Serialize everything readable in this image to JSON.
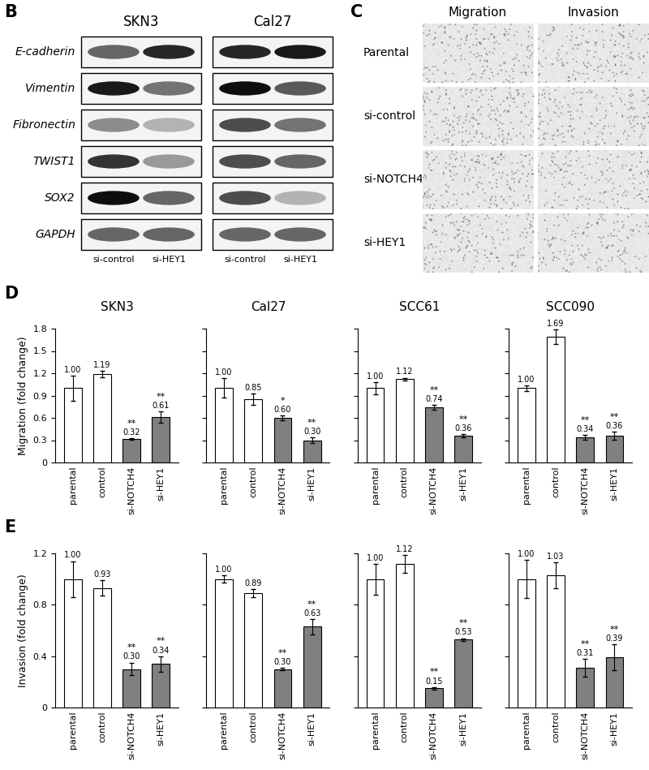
{
  "blots": {
    "label": "B",
    "proteins": [
      "E-cadherin",
      "Vimentin",
      "Fibronectin",
      "TWIST1",
      "SOX2",
      "GAPDH"
    ],
    "conditions": [
      "si-control",
      "si-HEY1"
    ],
    "cell_lines": [
      {
        "name": "SKN3",
        "band_intensity": [
          [
            0.6,
            0.85
          ],
          [
            0.9,
            0.55
          ],
          [
            0.45,
            0.3
          ],
          [
            0.8,
            0.4
          ],
          [
            0.95,
            0.6
          ],
          [
            0.6,
            0.6
          ]
        ]
      },
      {
        "name": "Cal27",
        "band_intensity": [
          [
            0.85,
            0.9
          ],
          [
            0.95,
            0.65
          ],
          [
            0.7,
            0.55
          ],
          [
            0.7,
            0.6
          ],
          [
            0.7,
            0.3
          ],
          [
            0.6,
            0.6
          ]
        ]
      }
    ]
  },
  "images": {
    "label": "C",
    "columns": [
      "Migration",
      "Invasion"
    ],
    "rows": [
      "Parental",
      "si-control",
      "si-NOTCH4",
      "si-HEY1"
    ]
  },
  "chart_data": [
    {
      "type": "bar",
      "panel": "D",
      "title": "SKN3",
      "y_label": "Migration (fold change)",
      "categories": [
        "parental",
        "control",
        "si-NOTCH4",
        "si-HEY1"
      ],
      "values": [
        1.0,
        1.19,
        0.32,
        0.61
      ],
      "value_labels": [
        "1.00",
        "1.19",
        "0.32",
        "0.61"
      ],
      "errors": [
        0.17,
        0.04,
        0.01,
        0.08
      ],
      "significance": [
        null,
        null,
        "**",
        "**"
      ],
      "colors": [
        "#ffffff",
        "#ffffff",
        "#808080",
        "#808080"
      ],
      "ylim": [
        0,
        1.8
      ],
      "yticks": [
        0,
        0.3,
        0.6,
        0.9,
        1.2,
        1.5,
        1.8
      ],
      "data_labels": true
    },
    {
      "type": "bar",
      "title": "Cal27",
      "categories": [
        "parental",
        "control",
        "si-NOTCH4",
        "si-HEY1"
      ],
      "values": [
        1.0,
        0.85,
        0.6,
        0.3
      ],
      "value_labels": [
        "1.00",
        "0.85",
        "0.60",
        "0.30"
      ],
      "errors": [
        0.13,
        0.08,
        0.03,
        0.04
      ],
      "significance": [
        null,
        null,
        "*",
        "**"
      ],
      "colors": [
        "#ffffff",
        "#ffffff",
        "#808080",
        "#808080"
      ],
      "ylim": [
        0,
        1.8
      ],
      "yticks": [
        0,
        0.3,
        0.6,
        0.9,
        1.2,
        1.5,
        1.8
      ],
      "data_labels": true,
      "tick_labels": "x"
    },
    {
      "type": "bar",
      "title": "SCC61",
      "categories": [
        "parental",
        "control",
        "si-NOTCH4",
        "si-HEY1"
      ],
      "values": [
        1.0,
        1.12,
        0.74,
        0.36
      ],
      "value_labels": [
        "1.00",
        "1.12",
        "0.74",
        "0.36"
      ],
      "errors": [
        0.08,
        0.02,
        0.03,
        0.02
      ],
      "significance": [
        null,
        null,
        "**",
        "**"
      ],
      "colors": [
        "#ffffff",
        "#ffffff",
        "#808080",
        "#808080"
      ],
      "ylim": [
        0,
        1.8
      ],
      "yticks": [
        0,
        0.3,
        0.6,
        0.9,
        1.2,
        1.5,
        1.8
      ],
      "data_labels": true,
      "tick_labels": "x"
    },
    {
      "type": "bar",
      "title": "SCC090",
      "categories": [
        "parental",
        "control",
        "si-NOTCH4",
        "si-HEY1"
      ],
      "values": [
        1.0,
        1.69,
        0.34,
        0.36
      ],
      "value_labels": [
        "1.00",
        "1.69",
        "0.34",
        "0.36"
      ],
      "errors": [
        0.04,
        0.1,
        0.03,
        0.05
      ],
      "significance": [
        null,
        null,
        "**",
        "**"
      ],
      "colors": [
        "#ffffff",
        "#ffffff",
        "#808080",
        "#808080"
      ],
      "ylim": [
        0,
        1.8
      ],
      "yticks": [
        0,
        0.3,
        0.6,
        0.9,
        1.2,
        1.5,
        1.8
      ],
      "data_labels": true,
      "tick_labels": "x"
    },
    {
      "type": "bar",
      "panel": "E",
      "y_label": "Invasion (fold change)",
      "categories": [
        "parental",
        "control",
        "si-NOTCH4",
        "si-HEY1"
      ],
      "values": [
        1.0,
        0.93,
        0.3,
        0.34
      ],
      "value_labels": [
        "1.00",
        "0.93",
        "0.30",
        "0.34"
      ],
      "errors": [
        0.14,
        0.06,
        0.05,
        0.06
      ],
      "significance": [
        null,
        null,
        "**",
        "**"
      ],
      "colors": [
        "#ffffff",
        "#ffffff",
        "#808080",
        "#808080"
      ],
      "ylim": [
        0,
        1.2
      ],
      "yticks": [
        0,
        0.4,
        0.8,
        1.2
      ],
      "data_labels": true
    },
    {
      "type": "bar",
      "categories": [
        "parental",
        "control",
        "si-NOTCH4",
        "si-HEY1"
      ],
      "values": [
        1.0,
        0.89,
        0.3,
        0.63
      ],
      "value_labels": [
        "1.00",
        "0.89",
        "0.30",
        "0.63"
      ],
      "errors": [
        0.03,
        0.03,
        0.01,
        0.06
      ],
      "significance": [
        null,
        null,
        "**",
        "**"
      ],
      "colors": [
        "#ffffff",
        "#ffffff",
        "#808080",
        "#808080"
      ],
      "ylim": [
        0,
        1.2
      ],
      "yticks": [
        0,
        0.4,
        0.8,
        1.2
      ],
      "data_labels": true,
      "tick_labels": "x"
    },
    {
      "type": "bar",
      "categories": [
        "parental",
        "control",
        "si-NOTCH4",
        "si-HEY1"
      ],
      "values": [
        1.0,
        1.12,
        0.15,
        0.53
      ],
      "value_labels": [
        "1.00",
        "1.12",
        "0.15",
        "0.53"
      ],
      "errors": [
        0.12,
        0.07,
        0.01,
        0.01
      ],
      "significance": [
        null,
        null,
        "**",
        "**"
      ],
      "colors": [
        "#ffffff",
        "#ffffff",
        "#808080",
        "#808080"
      ],
      "ylim": [
        0,
        1.2
      ],
      "yticks": [
        0,
        0.4,
        0.8,
        1.2
      ],
      "data_labels": true,
      "tick_labels": "x"
    },
    {
      "type": "bar",
      "categories": [
        "parental",
        "control",
        "si-NOTCH4",
        "si-HEY1"
      ],
      "values": [
        1.0,
        1.03,
        0.31,
        0.39
      ],
      "value_labels": [
        "1.00",
        "1.03",
        "0.31",
        "0.39"
      ],
      "errors": [
        0.15,
        0.1,
        0.07,
        0.1
      ],
      "significance": [
        null,
        null,
        "**",
        "**"
      ],
      "colors": [
        "#ffffff",
        "#ffffff",
        "#808080",
        "#808080"
      ],
      "ylim": [
        0,
        1.2
      ],
      "yticks": [
        0,
        0.4,
        0.8,
        1.2
      ],
      "data_labels": true,
      "tick_labels": "x"
    }
  ]
}
